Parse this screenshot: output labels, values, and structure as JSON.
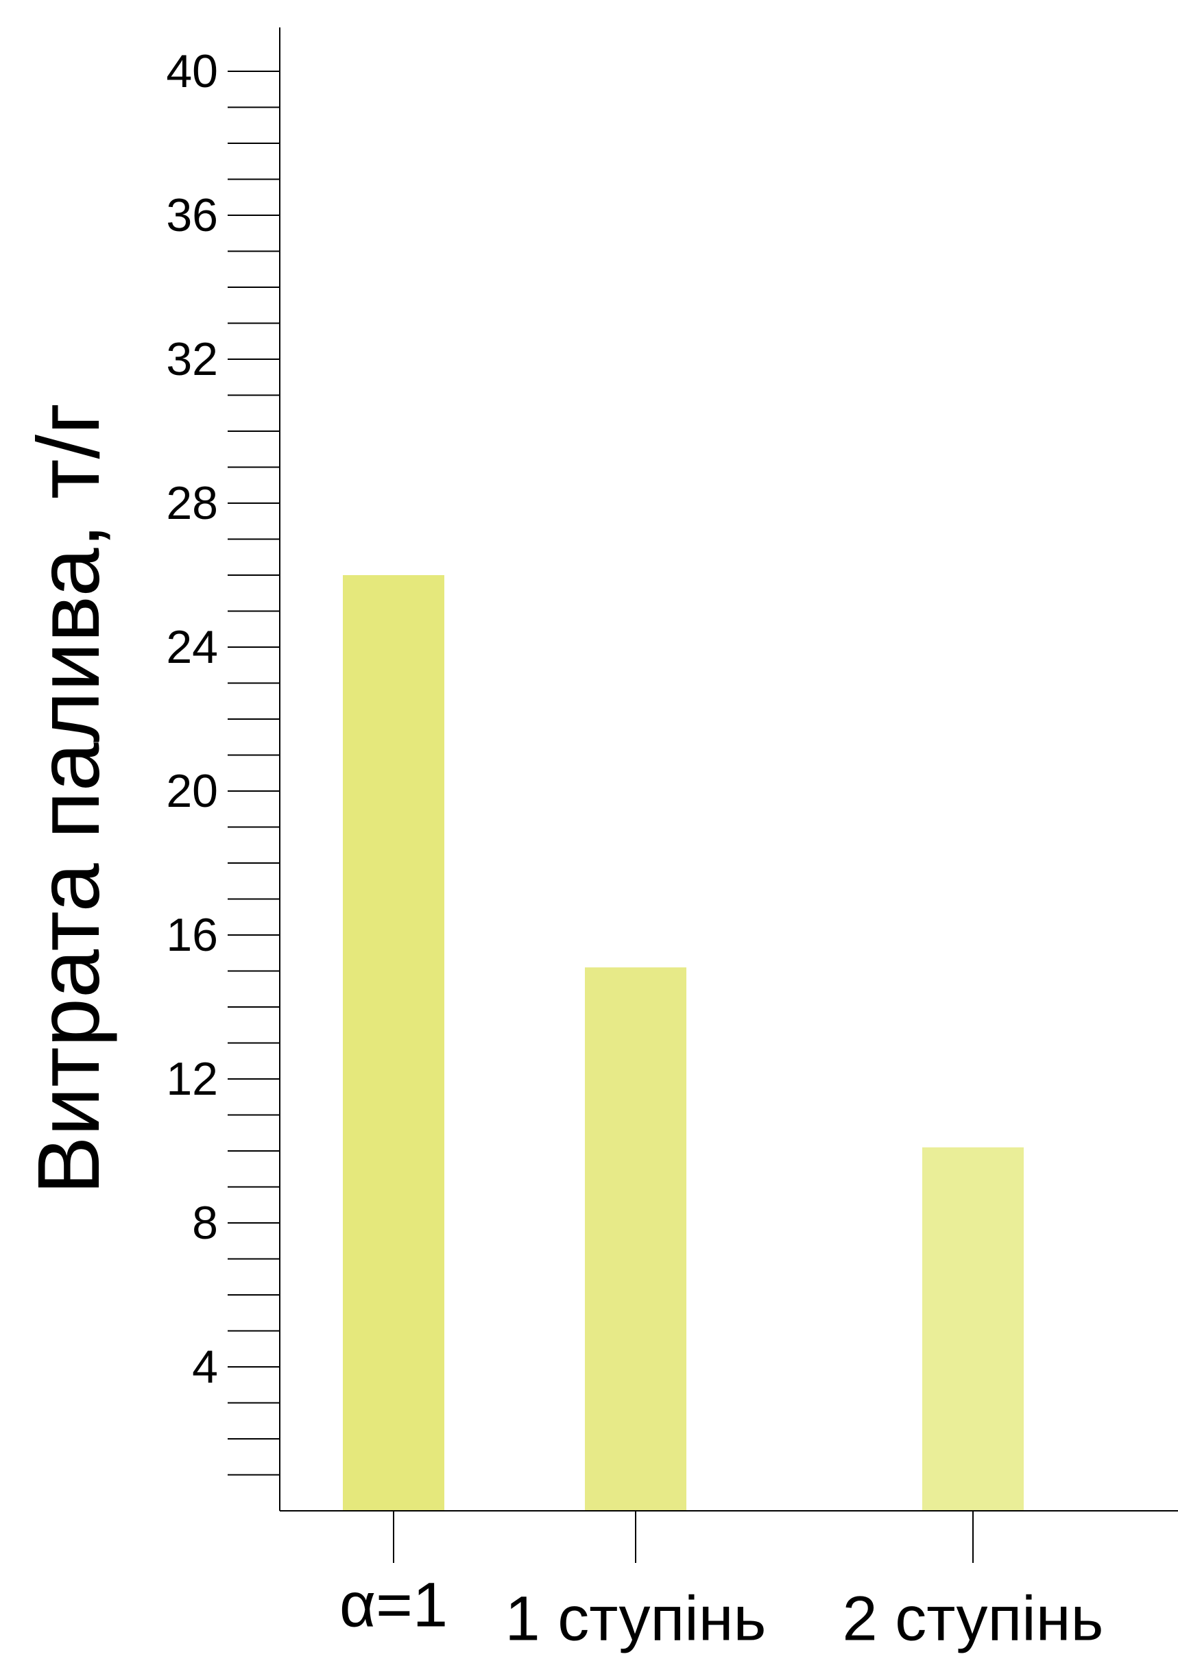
{
  "chart_data": {
    "type": "bar",
    "title": "",
    "xlabel": "",
    "ylabel": "Витрата палива, т/г",
    "categories": [
      "α=1",
      "1 ступінь",
      "2 ступінь"
    ],
    "values": [
      26,
      15.1,
      10.1
    ],
    "ylim": [
      0,
      41
    ],
    "yticks": [
      4,
      8,
      12,
      16,
      20,
      24,
      28,
      32,
      36,
      40
    ],
    "minor_step": 1,
    "grid": false,
    "legend": "none",
    "bar_colors": [
      "#e5e87c",
      "#e7ea88",
      "#eaee98"
    ],
    "axis_color": "#000000"
  }
}
